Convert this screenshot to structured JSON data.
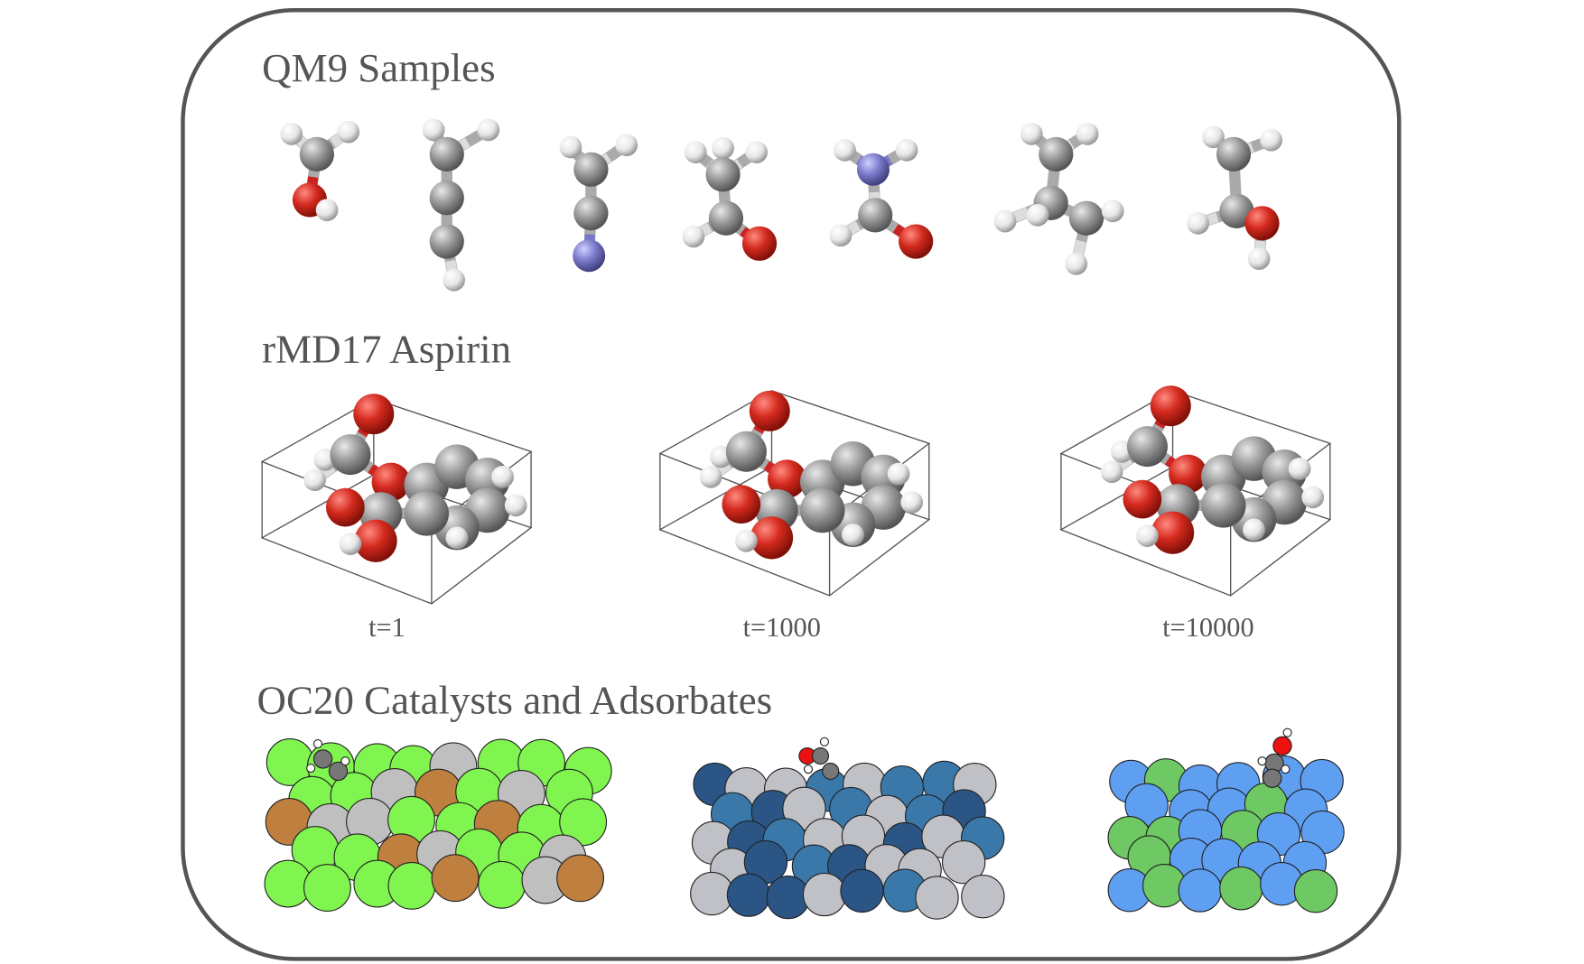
{
  "sections": [
    {
      "title": "QM9 Samples"
    },
    {
      "title": "rMD17 Aspirin",
      "labels": [
        "t=1",
        "t=1000",
        "t=10000"
      ]
    },
    {
      "title": "OC20 Catalysts and Adsorbates"
    }
  ]
}
